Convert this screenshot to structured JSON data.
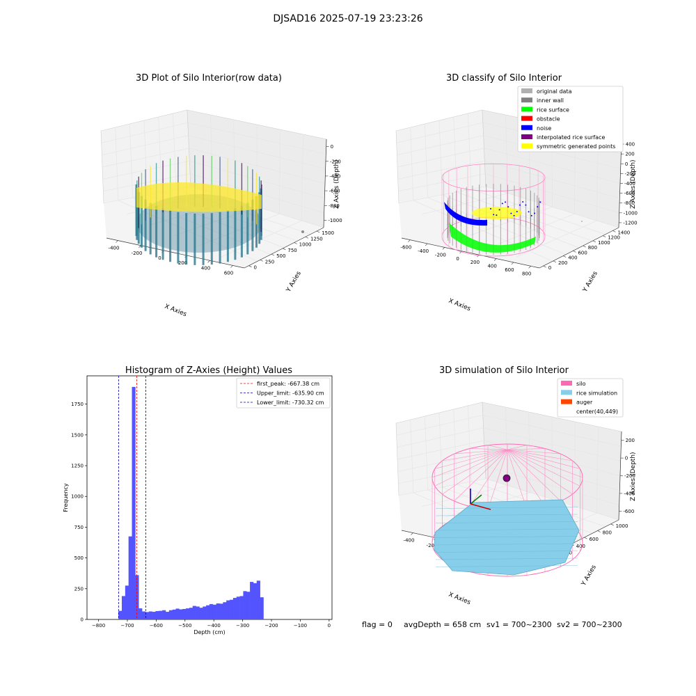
{
  "suptitle": "DJSAD16 2025-07-19 23:23:26",
  "footer": {
    "flag": "flag = 0",
    "avg": "avgDepth = 658 cm",
    "sv1": "sv1 = 700~2300",
    "sv2": "sv2 = 700~2300"
  },
  "chart_data": [
    {
      "type": "scatter",
      "title": "3D Plot of Silo Interior(row data)",
      "xlabel": "X Axies",
      "ylabel": "Y Axies",
      "zlabel": "Z Axies (Depth)",
      "x_ticks": [
        "-400",
        "-200",
        "0",
        "200",
        "400",
        "600"
      ],
      "y_ticks": [
        "0",
        "250",
        "500",
        "750",
        "1000",
        "1250",
        "1500"
      ],
      "z_ticks": [
        "-1000",
        "-800",
        "-600",
        "-400",
        "-200",
        "0"
      ],
      "colormap": "viridis"
    },
    {
      "type": "scatter",
      "title": "3D classify of Silo Interior",
      "xlabel": "X Axies",
      "ylabel": "Y Axies",
      "zlabel": "Z Axies (Depth)",
      "x_ticks": [
        "-600",
        "-400",
        "-200",
        "0",
        "200",
        "400",
        "600",
        "800"
      ],
      "y_ticks": [
        "0",
        "200",
        "400",
        "600",
        "800",
        "1000",
        "1200",
        "1400"
      ],
      "z_ticks": [
        "-1200",
        "-1000",
        "-800",
        "-600",
        "-400",
        "-200",
        "0",
        "200",
        "400"
      ],
      "legend": [
        {
          "label": "original data",
          "color": "#b0b0b0"
        },
        {
          "label": "inner wall",
          "color": "#808080"
        },
        {
          "label": "rice surface",
          "color": "#00ff00"
        },
        {
          "label": "obstacle",
          "color": "#ff0000"
        },
        {
          "label": "noise",
          "color": "#0000ff"
        },
        {
          "label": "interpolated rice surface",
          "color": "#800080"
        },
        {
          "label": "symmetric generated points",
          "color": "#ffff00"
        }
      ]
    },
    {
      "type": "bar",
      "title": "Histogram of Z-Axies (Height) Values",
      "xlabel": "Depth (cm)",
      "ylabel": "Frequency",
      "xlim": [
        -840,
        10
      ],
      "ylim": [
        0,
        1980
      ],
      "x_ticks": [
        -800,
        -700,
        -600,
        -500,
        -400,
        -300,
        -200,
        -100,
        0
      ],
      "y_ticks": [
        0,
        250,
        500,
        750,
        1000,
        1250,
        1500,
        1750
      ],
      "bin_start": -731,
      "bin_width": 11.7,
      "values": [
        70,
        190,
        275,
        675,
        1890,
        360,
        90,
        65,
        60,
        65,
        62,
        68,
        70,
        75,
        62,
        75,
        80,
        88,
        82,
        85,
        90,
        95,
        110,
        105,
        95,
        105,
        115,
        125,
        120,
        130,
        128,
        140,
        155,
        160,
        175,
        185,
        190,
        230,
        225,
        305,
        295,
        315,
        180
      ],
      "bar_color": "#5454ff",
      "lines": [
        {
          "label": "first_peak: -667.38 cm",
          "x": -667.38,
          "color": "#ff0000"
        },
        {
          "label": "Upper_limit: -635.90 cm",
          "x": -635.9,
          "color": "#0000aa"
        },
        {
          "label": "Lower_limit: -730.32 cm",
          "x": -730.32,
          "color": "#0000aa"
        }
      ]
    },
    {
      "type": "other",
      "title": "3D simulation of Silo Interior",
      "xlabel": "X Axies",
      "ylabel": "Y Axies",
      "zlabel": "Z Axies (Depth)",
      "x_ticks": [
        "-400",
        "-200",
        "0",
        "200",
        "400",
        "600"
      ],
      "y_ticks": [
        "0",
        "200",
        "400",
        "600",
        "800",
        "1000"
      ],
      "z_ticks": [
        "-600",
        "-400",
        "-200",
        "0",
        "200"
      ],
      "legend": [
        {
          "label": "silo",
          "color": "#ff69b4"
        },
        {
          "label": "rice simulation",
          "color": "#87ceeb"
        },
        {
          "label": "auger",
          "color": "#ff4500"
        },
        {
          "label": "center(40,449)",
          "color": ""
        }
      ]
    }
  ]
}
